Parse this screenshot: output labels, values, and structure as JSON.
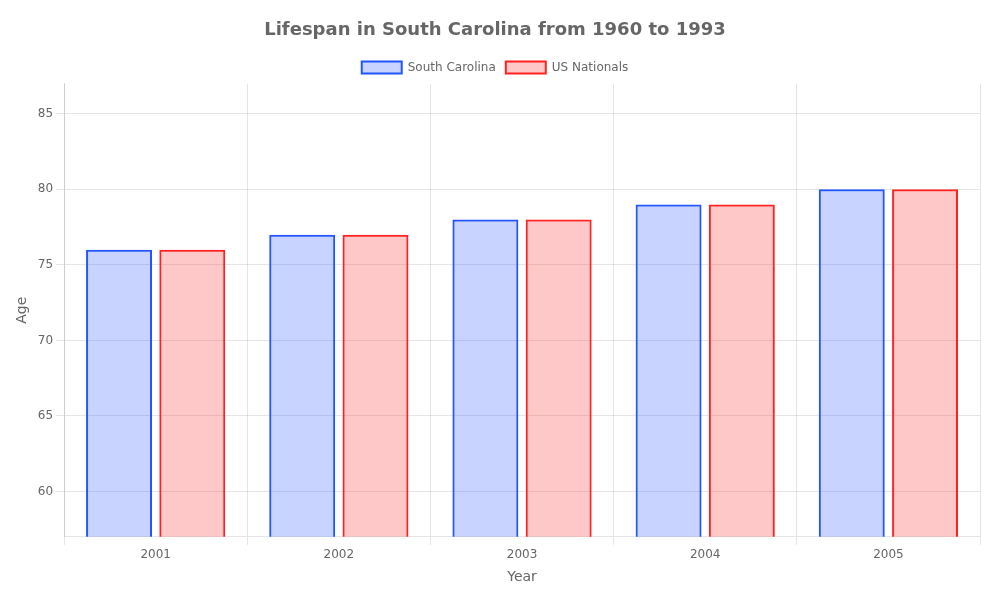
{
  "chart_data": {
    "type": "bar",
    "title": "Lifespan in South Carolina from 1960 to 1993",
    "xlabel": "Year",
    "ylabel": "Age",
    "categories": [
      2001,
      2002,
      2003,
      2004,
      2005
    ],
    "series": [
      {
        "name": "South Carolina",
        "color": "#2255ff",
        "values": [
          76,
          77,
          78,
          79,
          80
        ]
      },
      {
        "name": "US Nationals",
        "color": "#ff2222",
        "values": [
          76,
          77,
          78,
          79,
          80
        ]
      }
    ],
    "ylim": [
      57,
      87
    ],
    "yticks": [
      60,
      65,
      70,
      75,
      80,
      85
    ],
    "grid": true,
    "legend": "top"
  }
}
